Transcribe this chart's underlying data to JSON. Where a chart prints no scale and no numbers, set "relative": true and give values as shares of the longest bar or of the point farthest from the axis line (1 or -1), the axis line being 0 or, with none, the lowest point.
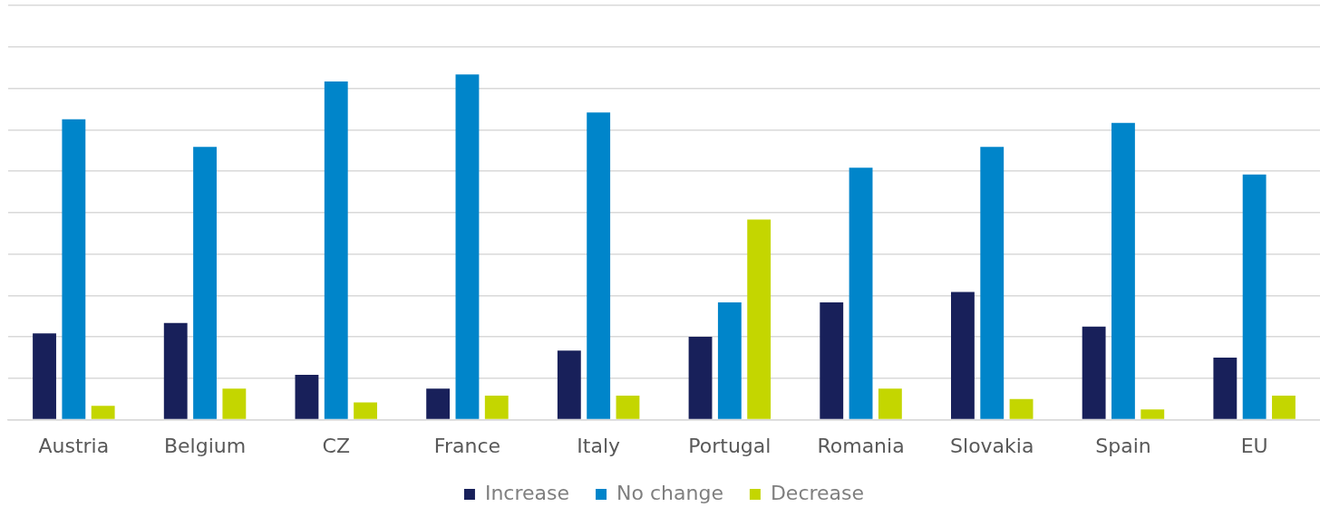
{
  "chart_data": {
    "type": "bar",
    "relative": true,
    "categories": [
      "Austria",
      "Belgium",
      "CZ",
      "France",
      "Italy",
      "Portugal",
      "Romania",
      "Slovakia",
      "Spain",
      "EU"
    ],
    "series": [
      {
        "name": "Increase",
        "color": "#18205a",
        "values": [
          0.25,
          0.28,
          0.13,
          0.09,
          0.2,
          0.24,
          0.34,
          0.37,
          0.27,
          0.18
        ]
      },
      {
        "name": "No change",
        "color": "#0085ca",
        "values": [
          0.87,
          0.79,
          0.98,
          1,
          0.89,
          0.34,
          0.73,
          0.79,
          0.86,
          0.71
        ]
      },
      {
        "name": "Decrease",
        "color": "#c4d600",
        "values": [
          0.04,
          0.09,
          0.05,
          0.07,
          0.07,
          0.58,
          0.09,
          0.06,
          0.03,
          0.07
        ]
      }
    ],
    "grid": "y",
    "legend": "bottom"
  }
}
